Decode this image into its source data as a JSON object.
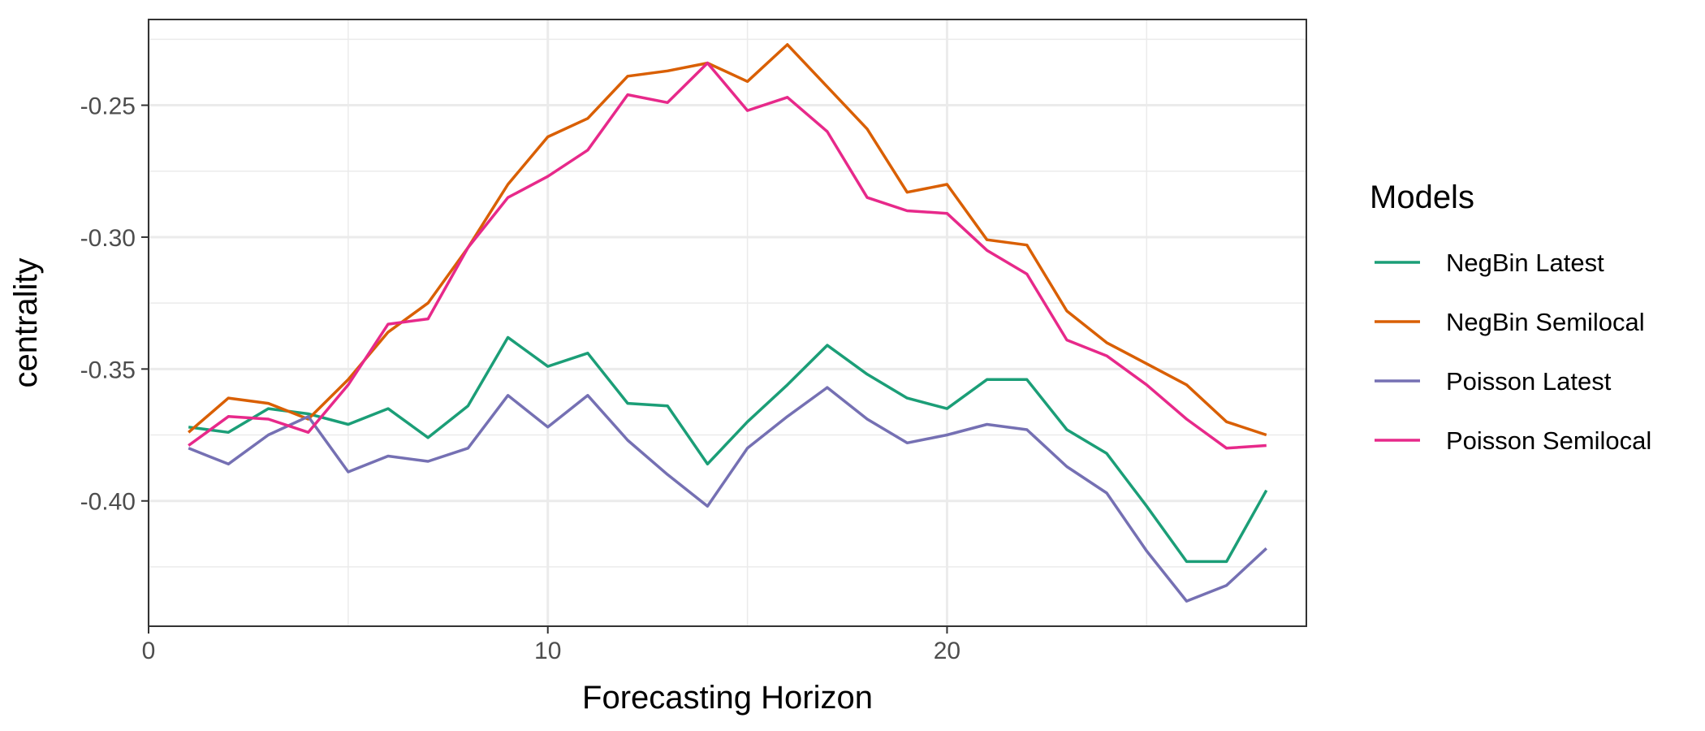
{
  "chart_data": {
    "type": "line",
    "xlabel": "Forecasting Horizon",
    "ylabel": "centrality",
    "xlim": [
      0,
      29
    ],
    "ylim": [
      -0.4475,
      -0.2175
    ],
    "x_ticks": [
      0,
      10,
      20
    ],
    "y_ticks": [
      -0.25,
      -0.3,
      -0.35,
      -0.4
    ],
    "x_tick_labels": [
      "0",
      "10",
      "20"
    ],
    "y_tick_labels": [
      "-0.25",
      "-0.30",
      "-0.35",
      "-0.40"
    ],
    "grid": true,
    "legend": {
      "title": "Models",
      "position": "right"
    },
    "x": [
      1,
      2,
      3,
      4,
      5,
      6,
      7,
      8,
      9,
      10,
      11,
      12,
      13,
      14,
      15,
      16,
      17,
      18,
      19,
      20,
      21,
      22,
      23,
      24,
      25,
      26,
      27,
      28
    ],
    "series": [
      {
        "name": "NegBin Latest",
        "color": "#1b9e77",
        "values": [
          -0.372,
          -0.374,
          -0.365,
          -0.367,
          -0.371,
          -0.365,
          -0.376,
          -0.364,
          -0.338,
          -0.349,
          -0.344,
          -0.363,
          -0.364,
          -0.386,
          -0.37,
          -0.356,
          -0.341,
          -0.352,
          -0.361,
          -0.365,
          -0.354,
          -0.354,
          -0.373,
          -0.382,
          -0.402,
          -0.423,
          -0.423,
          -0.396
        ]
      },
      {
        "name": "NegBin Semilocal",
        "color": "#d95f02",
        "values": [
          -0.374,
          -0.361,
          -0.363,
          -0.369,
          -0.354,
          -0.336,
          -0.325,
          -0.304,
          -0.28,
          -0.262,
          -0.255,
          -0.239,
          -0.237,
          -0.234,
          -0.241,
          -0.227,
          -0.243,
          -0.259,
          -0.283,
          -0.28,
          -0.301,
          -0.303,
          -0.328,
          -0.34,
          -0.348,
          -0.356,
          -0.37,
          -0.375
        ]
      },
      {
        "name": "Poisson Latest",
        "color": "#7570b3",
        "values": [
          -0.38,
          -0.386,
          -0.375,
          -0.368,
          -0.389,
          -0.383,
          -0.385,
          -0.38,
          -0.36,
          -0.372,
          -0.36,
          -0.377,
          -0.39,
          -0.402,
          -0.38,
          -0.368,
          -0.357,
          -0.369,
          -0.378,
          -0.375,
          -0.371,
          -0.373,
          -0.387,
          -0.397,
          -0.419,
          -0.438,
          -0.432,
          -0.418
        ]
      },
      {
        "name": "Poisson Semilocal",
        "color": "#e7298a",
        "values": [
          -0.379,
          -0.368,
          -0.369,
          -0.374,
          -0.356,
          -0.333,
          -0.331,
          -0.304,
          -0.285,
          -0.277,
          -0.267,
          -0.246,
          -0.249,
          -0.234,
          -0.252,
          -0.247,
          -0.26,
          -0.285,
          -0.29,
          -0.291,
          -0.305,
          -0.314,
          -0.339,
          -0.345,
          -0.356,
          -0.369,
          -0.38,
          -0.379
        ]
      }
    ]
  }
}
